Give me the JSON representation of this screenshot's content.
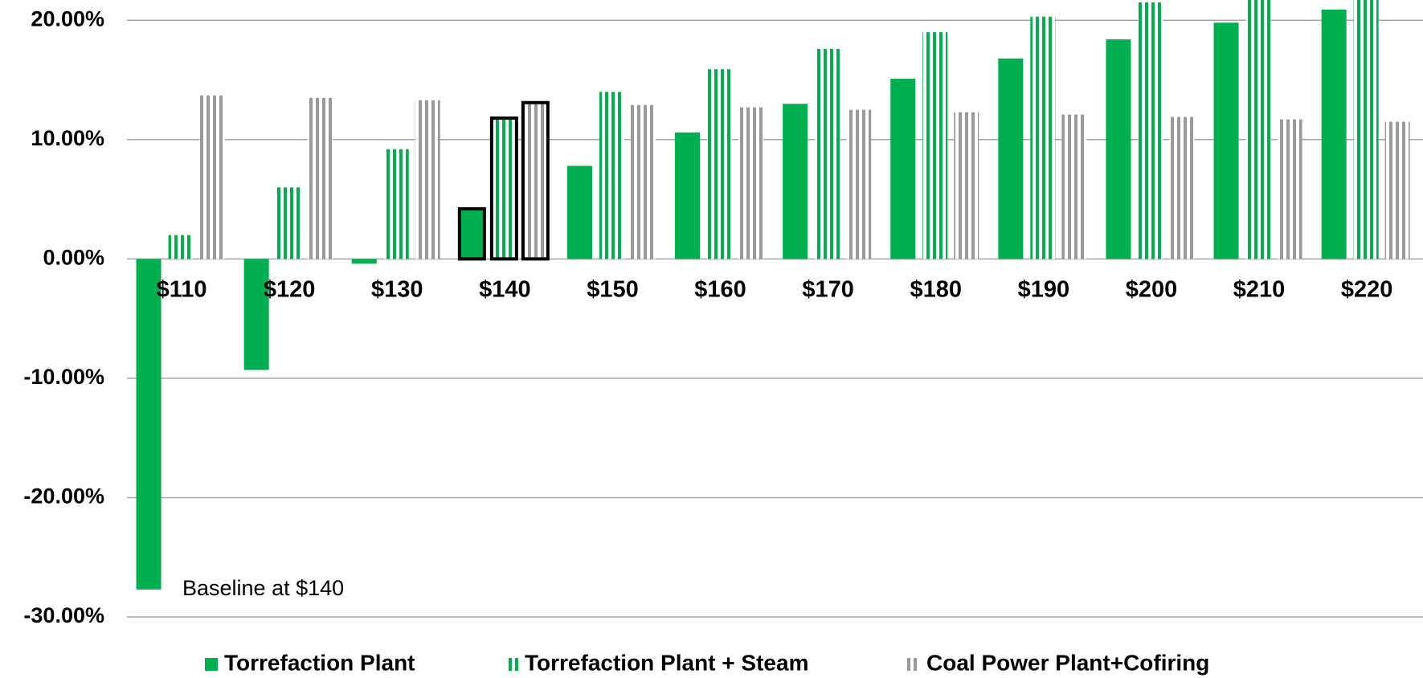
{
  "chart_data": {
    "type": "bar",
    "categories": [
      "$110",
      "$120",
      "$130",
      "$140",
      "$150",
      "$160",
      "$170",
      "$180",
      "$190",
      "$200",
      "$210",
      "$220"
    ],
    "series": [
      {
        "name": "Torrefaction Plant",
        "color": "#00b050",
        "pattern": "solid",
        "values": [
          -27.7,
          -9.3,
          -0.4,
          4.2,
          7.8,
          10.6,
          13.0,
          15.1,
          16.8,
          18.4,
          19.8,
          20.9
        ]
      },
      {
        "name": "Torrefaction Plant + Steam",
        "color": "#00b050",
        "pattern": "stripes",
        "values": [
          2.0,
          6.0,
          9.2,
          11.8,
          14.0,
          15.9,
          17.6,
          19.0,
          20.3,
          21.5,
          22.8,
          24.0
        ]
      },
      {
        "name": "Coal Power Plant+Cofiring",
        "color": "#999999",
        "pattern": "stripes",
        "values": [
          13.7,
          13.5,
          13.3,
          13.1,
          12.9,
          12.7,
          12.5,
          12.3,
          12.1,
          11.9,
          11.7,
          11.5
        ]
      }
    ],
    "ylim": [
      -30,
      21.7
    ],
    "yticks": [
      {
        "value": 20,
        "label": "20.00%"
      },
      {
        "value": 10,
        "label": "10.00%"
      },
      {
        "value": 0,
        "label": "0.00%"
      },
      {
        "value": -10,
        "label": "-10.00%"
      },
      {
        "value": -20,
        "label": "-20.00%"
      },
      {
        "value": -30,
        "label": "-30.00%"
      }
    ],
    "grid": true,
    "highlight_index": 3,
    "annotation": "Baseline at $140",
    "legend": "bottom"
  }
}
